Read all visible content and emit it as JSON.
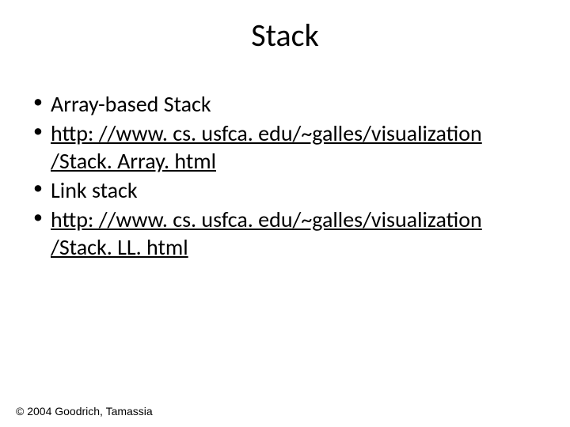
{
  "title": "Stack",
  "bullets": [
    {
      "text": "Array-based Stack",
      "link": false
    },
    {
      "text": "http: //www. cs. usfca. edu/~galles/visualization /Stack. Array. html",
      "link": true
    },
    {
      "text": "Link stack",
      "link": false
    },
    {
      "text": "http: //www. cs. usfca. edu/~galles/visualization /Stack. LL. html",
      "link": true
    }
  ],
  "footer": "© 2004 Goodrich, Tamassia",
  "colors": {
    "background": "#ffffff",
    "text": "#000000",
    "link": "#000000"
  },
  "fonts": {
    "title_size": 40,
    "body_size": 28,
    "footer_size": 14
  }
}
